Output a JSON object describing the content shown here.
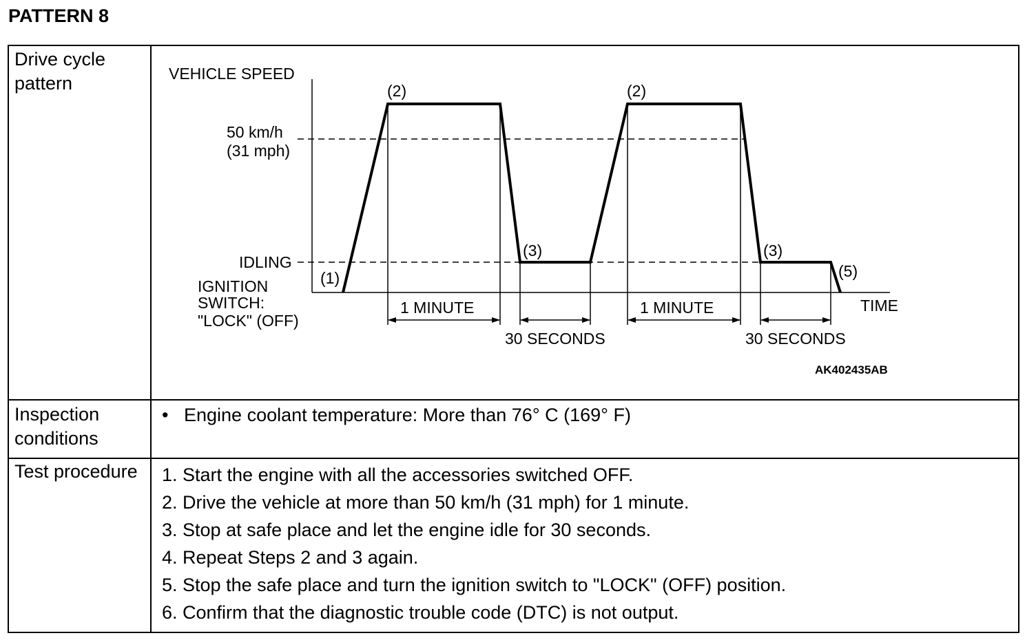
{
  "title": "PATTERN 8",
  "rows": {
    "drive_cycle_label": "Drive cycle pattern",
    "inspection_label": "Inspection conditions",
    "test_label": "Test procedure"
  },
  "diagram": {
    "y_axis_label": "VEHICLE SPEED",
    "x_axis_label": "TIME",
    "speed_line_1": "50 km/h",
    "speed_line_2": "(31 mph)",
    "idling": "IDLING",
    "ignition_1": "IGNITION",
    "ignition_2": "SWITCH:",
    "ignition_3": "\"LOCK\" (OFF)",
    "point_1": "(1)",
    "point_2": "(2)",
    "point_3": "(3)",
    "point_5": "(5)",
    "one_minute": "1 MINUTE",
    "thirty_seconds": "30 SECONDS",
    "figure_code": "AK402435AB"
  },
  "inspection": "Engine coolant temperature: More than 76° C (169° F)",
  "procedure": [
    "1. Start the engine with all the accessories switched OFF.",
    "2. Drive the vehicle at more than 50 km/h (31 mph) for 1 minute.",
    "3. Stop at safe place and let the engine idle for 30 seconds.",
    "4. Repeat Steps 2 and 3 again.",
    "5. Stop the safe place and turn the ignition switch to \"LOCK\" (OFF) position.",
    "6. Confirm that the diagnostic trouble code (DTC) is not output."
  ]
}
